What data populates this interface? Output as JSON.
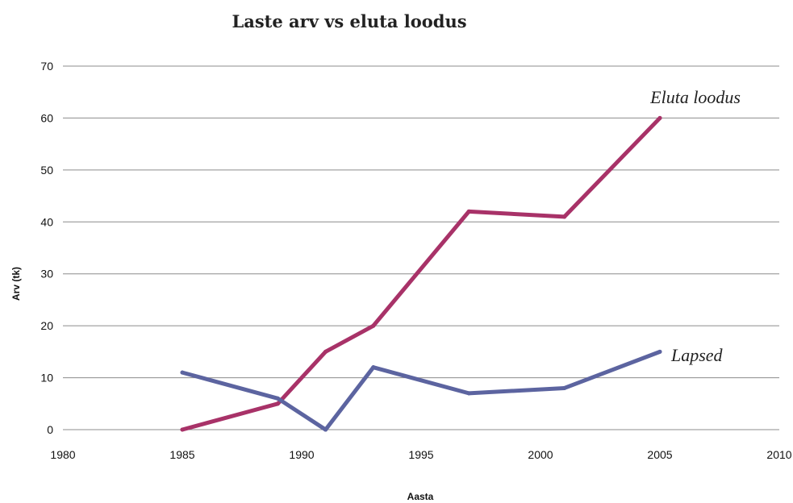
{
  "chart_data": {
    "type": "line",
    "title": "Laste arv vs eluta loodus",
    "xlabel": "Aasta",
    "ylabel": "Arv (tk)",
    "xlim": [
      1980,
      2010
    ],
    "ylim": [
      0,
      70
    ],
    "x_ticks": [
      "1980",
      "1985",
      "1990",
      "1995",
      "2000",
      "2005",
      "2010"
    ],
    "y_ticks": [
      "0",
      "10",
      "20",
      "30",
      "40",
      "50",
      "60",
      "70"
    ],
    "grid": true,
    "series": [
      {
        "name": "Eluta loodus",
        "color": "#a83268",
        "points": [
          {
            "x": 1985,
            "y": 0
          },
          {
            "x": 1989,
            "y": 5
          },
          {
            "x": 1991,
            "y": 15
          },
          {
            "x": 1993,
            "y": 20
          },
          {
            "x": 1997,
            "y": 42
          },
          {
            "x": 2001,
            "y": 41
          },
          {
            "x": 2005,
            "y": 60
          }
        ]
      },
      {
        "name": "Lapsed",
        "color": "#5c64a0",
        "points": [
          {
            "x": 1985,
            "y": 11
          },
          {
            "x": 1989,
            "y": 6
          },
          {
            "x": 1991,
            "y": 0
          },
          {
            "x": 1993,
            "y": 12
          },
          {
            "x": 1997,
            "y": 7
          },
          {
            "x": 2001,
            "y": 8
          },
          {
            "x": 2005,
            "y": 15
          }
        ]
      }
    ]
  }
}
